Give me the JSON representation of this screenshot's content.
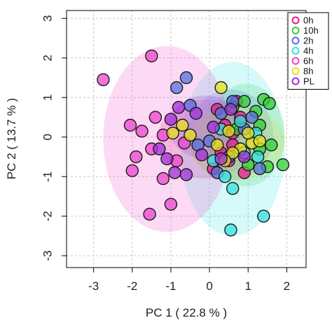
{
  "chart_data": {
    "type": "scatter",
    "title": "",
    "xlabel": "PC 1 ( 22.8 % )",
    "ylabel": "PC 2 ( 13.7 % )",
    "xlim": [
      -3.7,
      2.5
    ],
    "ylim": [
      -3.3,
      3.2
    ],
    "x_ticks": [
      -3,
      -2,
      -1,
      0,
      1,
      2
    ],
    "y_ticks": [
      -3,
      -2,
      -1,
      0,
      1,
      2,
      3
    ],
    "grid": true,
    "legend_position": "top-right",
    "series": [
      {
        "name": "0h",
        "color": "#e8188a",
        "ellipse": {
          "cx": -0.1,
          "cy": -0.05,
          "rx": 1.25,
          "ry": 1.0
        },
        "points": [
          [
            0.2,
            0.7
          ],
          [
            0.4,
            0.3
          ],
          [
            0.6,
            -0.2
          ],
          [
            0.8,
            0.5
          ],
          [
            0.5,
            -0.6
          ],
          [
            0.9,
            -0.9
          ],
          [
            0.3,
            -0.4
          ],
          [
            0.7,
            0.9
          ],
          [
            0.1,
            -0.8
          ],
          [
            0.6,
            0.1
          ]
        ]
      },
      {
        "name": "10h",
        "color": "#33cc33",
        "ellipse": {
          "cx": 0.95,
          "cy": 0.05,
          "rx": 1.0,
          "ry": 1.3
        },
        "points": [
          [
            1.4,
            0.95
          ],
          [
            1.55,
            0.85
          ],
          [
            1.3,
            0.3
          ],
          [
            1.9,
            -0.7
          ],
          [
            1.6,
            -0.2
          ],
          [
            1.3,
            -0.3
          ],
          [
            1.0,
            -0.7
          ],
          [
            0.9,
            0.9
          ],
          [
            1.2,
            0.65
          ],
          [
            0.7,
            0.2
          ],
          [
            0.6,
            0.75
          ],
          [
            1.5,
            -0.75
          ]
        ]
      },
      {
        "name": "2h",
        "color": "#5570e0",
        "ellipse": {
          "cx": 0.55,
          "cy": 0.05,
          "rx": 1.1,
          "ry": 1.15
        },
        "points": [
          [
            -0.6,
            1.5
          ],
          [
            -0.85,
            1.25
          ],
          [
            0.3,
            0.6
          ],
          [
            0.6,
            0.9
          ],
          [
            1.1,
            0.5
          ],
          [
            0.0,
            -0.1
          ],
          [
            0.5,
            -0.5
          ],
          [
            1.3,
            -0.8
          ],
          [
            -0.3,
            -0.2
          ],
          [
            0.2,
            -0.9
          ],
          [
            0.9,
            0.2
          ],
          [
            -0.5,
            0.8
          ]
        ]
      },
      {
        "name": "4h",
        "color": "#33e0e0",
        "ellipse": {
          "cx": 0.6,
          "cy": -0.3,
          "rx": 1.35,
          "ry": 2.2
        },
        "points": [
          [
            0.55,
            -2.35
          ],
          [
            1.4,
            -2.0
          ],
          [
            0.4,
            -1.0
          ],
          [
            1.25,
            -0.5
          ],
          [
            0.3,
            0.2
          ],
          [
            0.8,
            0.4
          ],
          [
            1.2,
            0.1
          ],
          [
            0.1,
            -0.6
          ],
          [
            0.9,
            -0.4
          ],
          [
            0.6,
            -1.3
          ]
        ]
      },
      {
        "name": "6h",
        "color": "#ee44cc",
        "ellipse": {
          "cx": -1.1,
          "cy": -0.05,
          "rx": 1.65,
          "ry": 2.35
        },
        "points": [
          [
            -2.75,
            1.45
          ],
          [
            -1.5,
            2.05
          ],
          [
            -2.05,
            0.3
          ],
          [
            -1.75,
            0.15
          ],
          [
            -1.5,
            -0.3
          ],
          [
            -1.9,
            -0.5
          ],
          [
            -2.0,
            -0.85
          ],
          [
            -1.2,
            -1.05
          ],
          [
            -0.85,
            -0.6
          ],
          [
            -1.4,
            0.5
          ],
          [
            -1.55,
            -1.95
          ],
          [
            -1.0,
            -1.7
          ],
          [
            -0.65,
            -0.15
          ],
          [
            -1.2,
            0.05
          ]
        ]
      },
      {
        "name": "8h",
        "color": "#e6e019",
        "ellipse": {
          "cx": 0.7,
          "cy": -0.15,
          "rx": 1.25,
          "ry": 0.95
        },
        "points": [
          [
            0.3,
            1.25
          ],
          [
            0.5,
            0.15
          ],
          [
            0.8,
            -0.3
          ],
          [
            1.1,
            -0.15
          ],
          [
            0.2,
            -0.2
          ],
          [
            0.6,
            -0.4
          ],
          [
            1.0,
            0.1
          ],
          [
            -0.7,
            0.3
          ],
          [
            -0.95,
            0.1
          ],
          [
            -0.5,
            0.05
          ],
          [
            0.4,
            -0.6
          ],
          [
            1.3,
            -0.1
          ]
        ]
      },
      {
        "name": "PL",
        "color": "#a030d8",
        "ellipse": {
          "cx": -0.1,
          "cy": 0.25,
          "rx": 0.95,
          "ry": 0.8
        },
        "points": [
          [
            -1.0,
            0.45
          ],
          [
            -1.3,
            -0.3
          ],
          [
            -0.9,
            -0.9
          ],
          [
            -0.8,
            0.75
          ],
          [
            -0.35,
            0.6
          ],
          [
            0.1,
            0.25
          ],
          [
            0.3,
            -0.55
          ],
          [
            -0.2,
            -0.45
          ],
          [
            0.55,
            0.7
          ],
          [
            0.9,
            -0.5
          ],
          [
            -1.1,
            -0.55
          ],
          [
            -0.6,
            -0.95
          ]
        ]
      }
    ]
  }
}
